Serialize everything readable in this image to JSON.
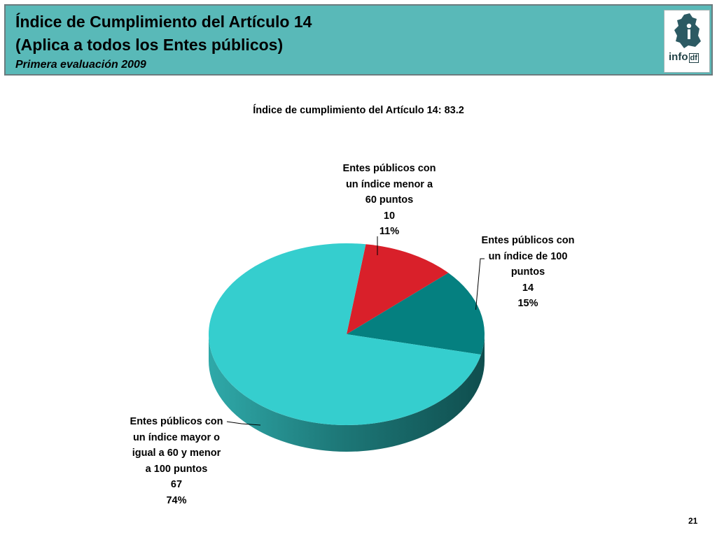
{
  "header": {
    "title_line1": "Índice de Cumplimiento del Artículo 14",
    "title_line2": "(Aplica a todos los Entes públicos)",
    "subtitle": "Primera evaluación 2009",
    "logo_text": "info",
    "logo_text_suffix": "df"
  },
  "chart_data": {
    "type": "pie",
    "title": "Índice de cumplimiento del Artículo 14: 83.2",
    "slices": [
      {
        "label_lines": [
          "Entes públicos con",
          "un índice menor a",
          "60 puntos"
        ],
        "count": "10",
        "percent_label": "11%",
        "value": 10,
        "color": "#d9202a"
      },
      {
        "label_lines": [
          "Entes públicos con",
          "un índice de 100",
          "puntos"
        ],
        "count": "14",
        "percent_label": "15%",
        "value": 14,
        "color": "#058080"
      },
      {
        "label_lines": [
          "Entes públicos con",
          "un índice mayor o",
          "igual a 60 y menor",
          "a 100 puntos"
        ],
        "count": "67",
        "percent_label": "74%",
        "value": 67,
        "color": "#35cece"
      }
    ]
  },
  "footer": {
    "page_number": "21"
  }
}
